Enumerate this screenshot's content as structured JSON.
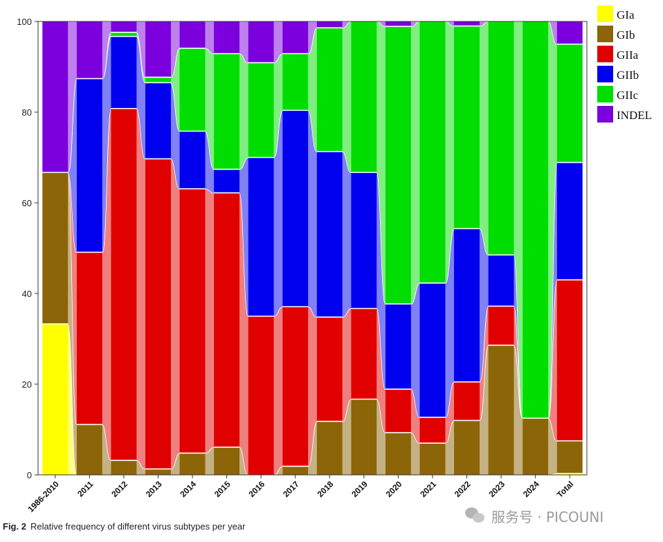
{
  "chart_data": {
    "type": "bar",
    "stacked": true,
    "title": "",
    "xlabel": "",
    "ylabel": "",
    "ylim": [
      0,
      100
    ],
    "yticks": [
      0,
      20,
      40,
      60,
      80,
      100
    ],
    "categories": [
      "1986-2010",
      "2011",
      "2012",
      "2013",
      "2014",
      "2015",
      "2016",
      "2017",
      "2018",
      "2019",
      "2020",
      "2021",
      "2022",
      "2023",
      "2024",
      "Total"
    ],
    "series": [
      {
        "name": "GIa",
        "color": "#ffff00",
        "values": [
          33.3,
          0,
          0,
          0,
          0,
          0,
          0,
          0,
          0,
          0,
          0,
          0,
          0,
          0,
          0,
          0.3
        ]
      },
      {
        "name": "GIb",
        "color": "#8b6508",
        "values": [
          33.4,
          11.1,
          3.2,
          1.3,
          4.8,
          6.1,
          0,
          1.9,
          11.8,
          16.7,
          9.3,
          7.0,
          12.0,
          28.6,
          12.5,
          7.2
        ]
      },
      {
        "name": "GIIa",
        "color": "#e00000",
        "values": [
          0,
          38.0,
          77.6,
          68.4,
          58.3,
          56.1,
          35.0,
          35.2,
          23.0,
          20.0,
          9.6,
          5.7,
          8.5,
          8.6,
          0,
          35.5
        ]
      },
      {
        "name": "GIIb",
        "color": "#0000ee",
        "values": [
          0,
          38.3,
          15.9,
          16.8,
          12.7,
          5.2,
          35.0,
          43.3,
          36.5,
          30.0,
          18.8,
          29.6,
          33.8,
          11.3,
          0,
          25.9
        ]
      },
      {
        "name": "GIIc",
        "color": "#00dd00",
        "values": [
          0,
          0,
          0.9,
          1.2,
          18.3,
          25.5,
          20.9,
          12.5,
          27.3,
          33.3,
          61.2,
          57.7,
          44.7,
          51.5,
          87.5,
          26.1
        ]
      },
      {
        "name": "INDEL",
        "color": "#7b00dd",
        "values": [
          33.3,
          12.6,
          2.4,
          12.3,
          5.9,
          7.1,
          9.1,
          7.1,
          1.4,
          0,
          1.1,
          0,
          1.0,
          0,
          0,
          5.0
        ]
      }
    ],
    "legend_position": "right",
    "grid": false
  },
  "caption": {
    "label": "Fig. 2",
    "text": "Relative frequency of different virus subtypes per year"
  },
  "watermark": {
    "icon": "wechat-icon",
    "text": "服务号 · PICOUNI"
  }
}
